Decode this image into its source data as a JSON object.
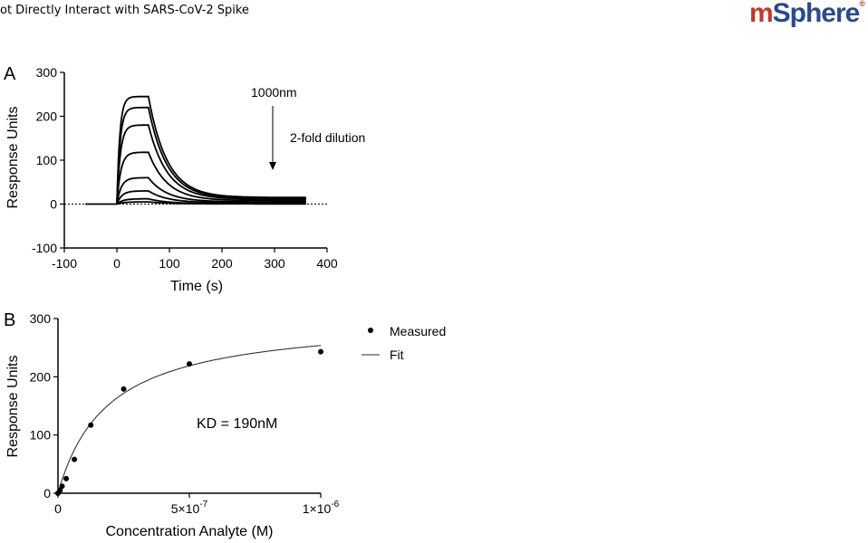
{
  "header": {
    "title": "ot Directly Interact with SARS-CoV-2 Spike",
    "logo": "mSphere"
  },
  "chart_data": [
    {
      "panel_label": "A",
      "type": "line",
      "xlabel": "Time (s)",
      "ylabel": "Response Units",
      "xlim": [
        -100,
        400
      ],
      "ylim": [
        -100,
        300
      ],
      "x_ticks": [
        "-100",
        "0",
        "100",
        "200",
        "300",
        "400"
      ],
      "y_ticks": [
        "-100",
        "0",
        "100",
        "200",
        "300"
      ],
      "annotations": {
        "top": "1000nm",
        "arrow_label": "2-fold dilution"
      },
      "baseline": 0,
      "association": [
        0,
        60
      ],
      "dissociation_end": 360,
      "series_peaks": [
        245,
        220,
        180,
        118,
        60,
        30,
        12,
        5
      ],
      "series_ends": [
        15,
        13,
        11,
        8,
        5,
        3,
        1,
        0.5
      ]
    },
    {
      "panel_label": "B",
      "type": "scatter",
      "xlabel": "Concentration Analyte (M)",
      "ylabel": "Response Units",
      "xlim": [
        0,
        1e-06
      ],
      "ylim": [
        0,
        300
      ],
      "x_ticks": [
        "0",
        "5×10",
        "1×10"
      ],
      "x_tick_exponents": [
        "",
        "-7",
        "-6"
      ],
      "y_ticks": [
        "0",
        "100",
        "200",
        "300"
      ],
      "legend": {
        "measured": "Measured",
        "fit": "Fit"
      },
      "annotation": "KD = 190nM",
      "kd": 1.9e-07,
      "rmax": 302,
      "points": [
        {
          "x": 0,
          "y": 0
        },
        {
          "x": 7.8e-09,
          "y": 5
        },
        {
          "x": 1.56e-08,
          "y": 12
        },
        {
          "x": 3.125e-08,
          "y": 25
        },
        {
          "x": 6.25e-08,
          "y": 58
        },
        {
          "x": 1.25e-07,
          "y": 117
        },
        {
          "x": 2.5e-07,
          "y": 179
        },
        {
          "x": 5e-07,
          "y": 222
        },
        {
          "x": 1e-06,
          "y": 243
        }
      ]
    }
  ]
}
